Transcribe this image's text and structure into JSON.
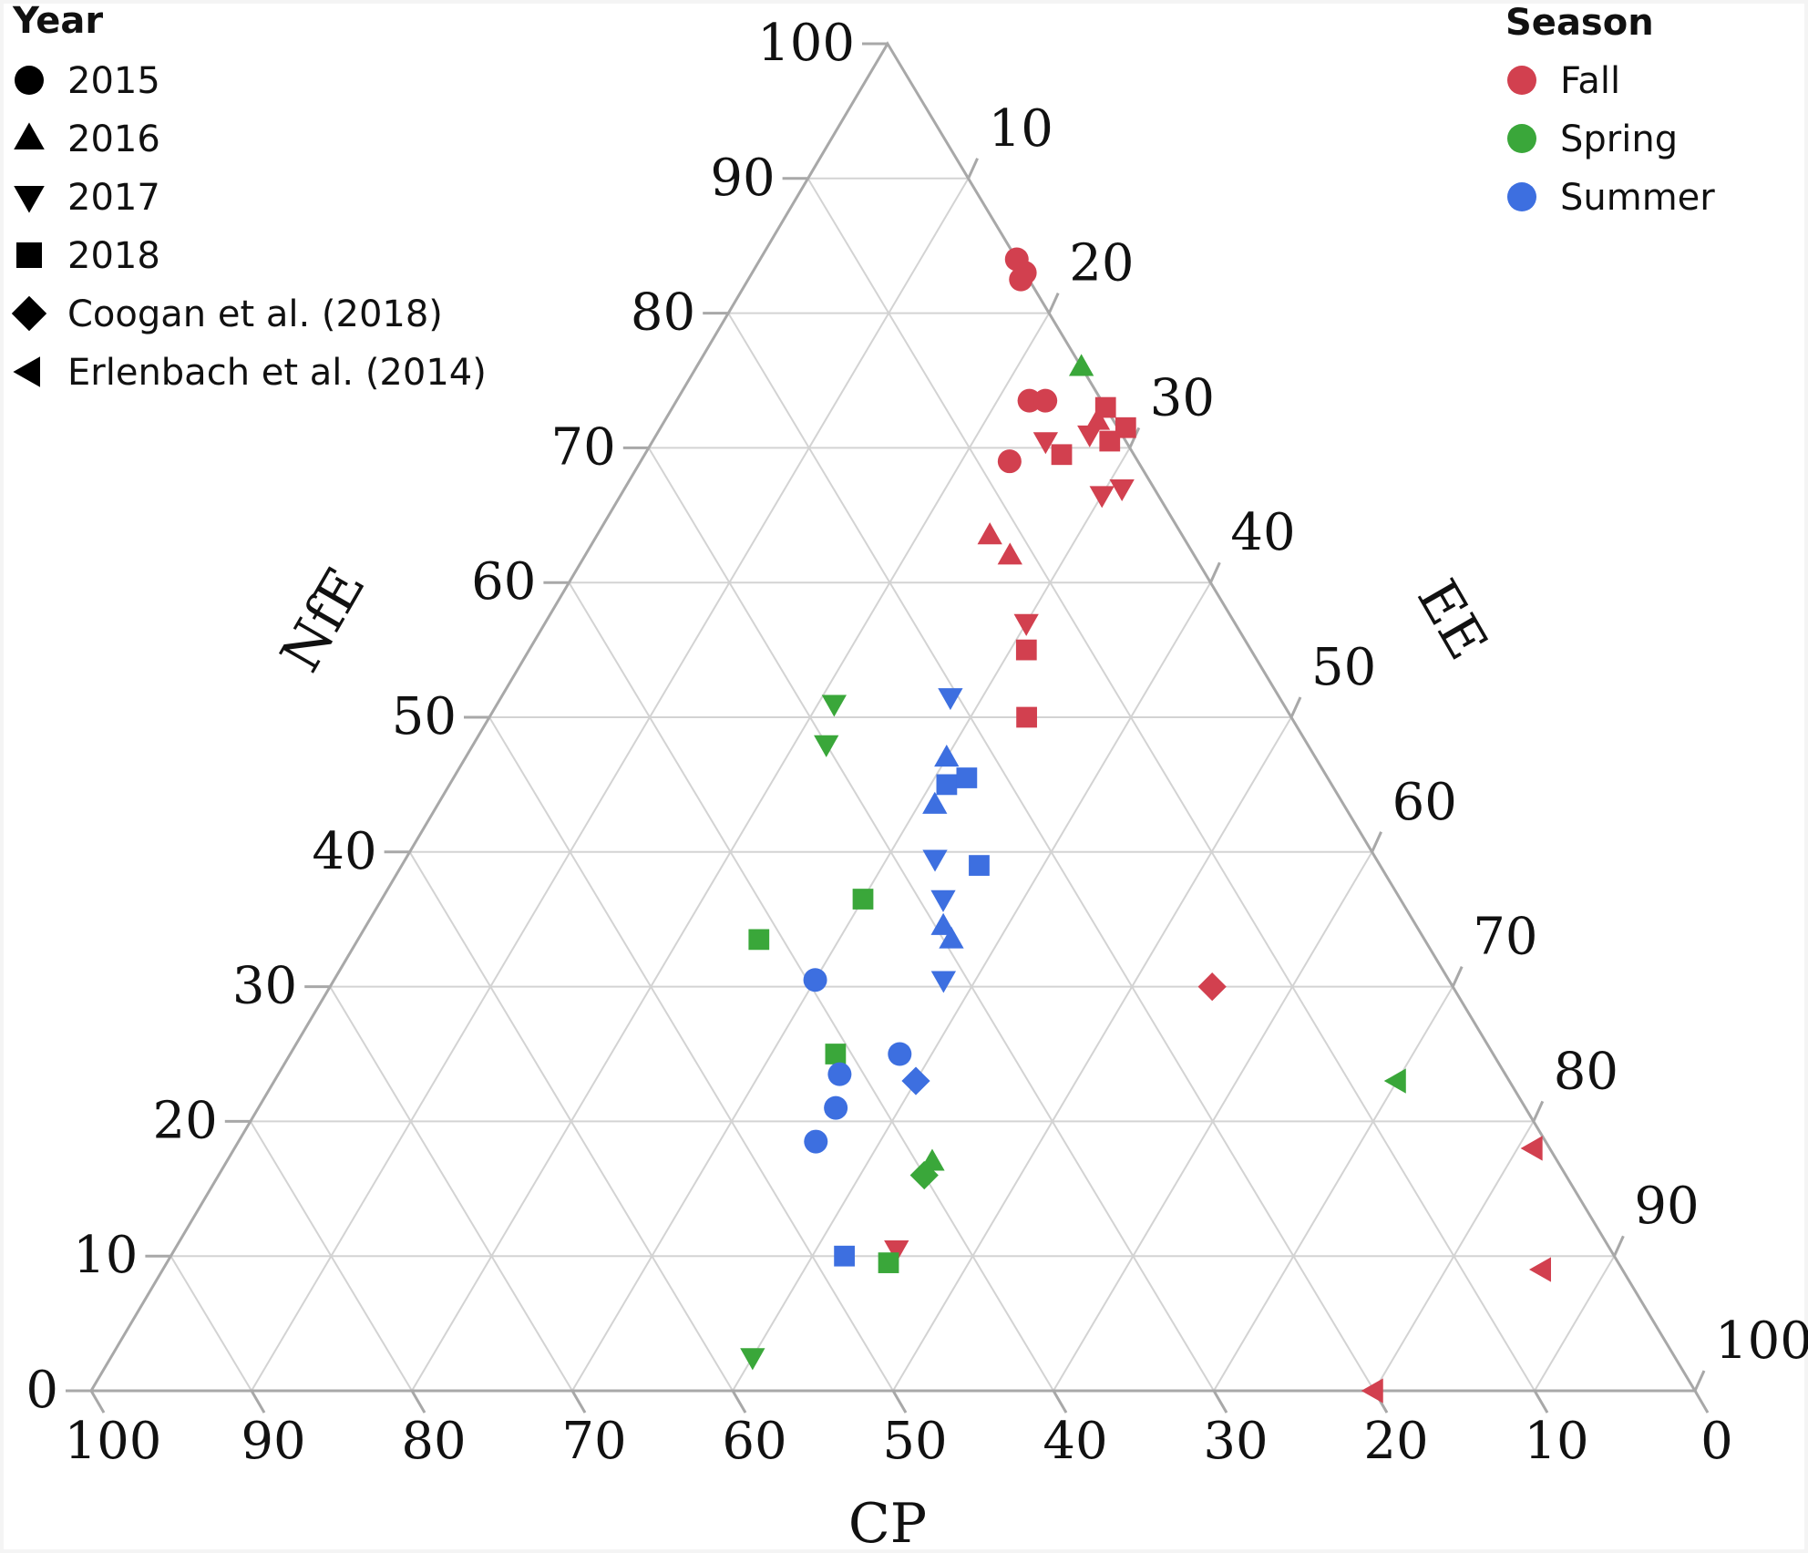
{
  "chart_data": {
    "type": "scatter",
    "subtype": "ternary",
    "title": "",
    "axes": {
      "left": {
        "label": "NfE",
        "ticks": [
          "0",
          "10",
          "20",
          "30",
          "40",
          "50",
          "60",
          "70",
          "80",
          "90",
          "100"
        ]
      },
      "right": {
        "label": "EE",
        "ticks": [
          "10",
          "20",
          "30",
          "40",
          "50",
          "60",
          "70",
          "80",
          "90",
          "100"
        ]
      },
      "bottom": {
        "label": "CP",
        "ticks": [
          "100",
          "90",
          "80",
          "70",
          "60",
          "50",
          "40",
          "30",
          "20",
          "10",
          "0"
        ]
      }
    },
    "grid": true,
    "colors": {
      "Fall": "#d2404f",
      "Spring": "#3aa73a",
      "Summer": "#3d6fe0"
    },
    "legends": {
      "year": {
        "title": "Year",
        "position": "top-left",
        "entries": [
          {
            "label": "2015",
            "marker": "circle"
          },
          {
            "label": "2016",
            "marker": "triangle-up"
          },
          {
            "label": "2017",
            "marker": "triangle-down"
          },
          {
            "label": "2018",
            "marker": "square"
          },
          {
            "label": "Coogan et al. (2018)",
            "marker": "diamond"
          },
          {
            "label": "Erlenbach et al. (2014)",
            "marker": "triangle-left"
          }
        ]
      },
      "season": {
        "title": "Season",
        "position": "top-right",
        "entries": [
          {
            "label": "Fall",
            "color": "#d2404f"
          },
          {
            "label": "Spring",
            "color": "#3aa73a"
          },
          {
            "label": "Summer",
            "color": "#3d6fe0"
          }
        ]
      }
    },
    "points": [
      {
        "season": "Fall",
        "marker": "circle",
        "NfE": 84,
        "EE": 16
      },
      {
        "season": "Fall",
        "marker": "circle",
        "NfE": 83,
        "EE": 17
      },
      {
        "season": "Fall",
        "marker": "circle",
        "NfE": 82.5,
        "EE": 17
      },
      {
        "season": "Fall",
        "marker": "circle",
        "NfE": 73.5,
        "EE": 22
      },
      {
        "season": "Fall",
        "marker": "circle",
        "NfE": 73.5,
        "EE": 23
      },
      {
        "season": "Fall",
        "marker": "circle",
        "NfE": 69,
        "EE": 23
      },
      {
        "season": "Fall",
        "marker": "triangle-up",
        "NfE": 72,
        "EE": 27
      },
      {
        "season": "Fall",
        "marker": "triangle-up",
        "NfE": 63.5,
        "EE": 24.5
      },
      {
        "season": "Fall",
        "marker": "triangle-up",
        "NfE": 62,
        "EE": 26.5
      },
      {
        "season": "Fall",
        "marker": "triangle-down",
        "NfE": 70.5,
        "EE": 24.5
      },
      {
        "season": "Fall",
        "marker": "triangle-down",
        "NfE": 71,
        "EE": 27
      },
      {
        "season": "Fall",
        "marker": "triangle-down",
        "NfE": 66.5,
        "EE": 30
      },
      {
        "season": "Fall",
        "marker": "triangle-down",
        "NfE": 67,
        "EE": 31
      },
      {
        "season": "Fall",
        "marker": "triangle-down",
        "NfE": 57,
        "EE": 30
      },
      {
        "season": "Fall",
        "marker": "triangle-down",
        "NfE": 10.5,
        "EE": 45
      },
      {
        "season": "Fall",
        "marker": "square",
        "NfE": 73,
        "EE": 27
      },
      {
        "season": "Fall",
        "marker": "square",
        "NfE": 71.5,
        "EE": 29
      },
      {
        "season": "Fall",
        "marker": "square",
        "NfE": 70.5,
        "EE": 28.5
      },
      {
        "season": "Fall",
        "marker": "square",
        "NfE": 69.5,
        "EE": 26
      },
      {
        "season": "Fall",
        "marker": "square",
        "NfE": 55,
        "EE": 31
      },
      {
        "season": "Fall",
        "marker": "square",
        "NfE": 50,
        "EE": 33.5
      },
      {
        "season": "Fall",
        "marker": "diamond",
        "NfE": 30,
        "EE": 55
      },
      {
        "season": "Fall",
        "marker": "triangle-left",
        "NfE": 18,
        "EE": 81
      },
      {
        "season": "Fall",
        "marker": "triangle-left",
        "NfE": 9,
        "EE": 86
      },
      {
        "season": "Fall",
        "marker": "triangle-left",
        "NfE": 0,
        "EE": 80
      },
      {
        "season": "Spring",
        "marker": "triangle-up",
        "NfE": 76,
        "EE": 24
      },
      {
        "season": "Spring",
        "marker": "triangle-up",
        "NfE": 17,
        "EE": 44
      },
      {
        "season": "Spring",
        "marker": "triangle-down",
        "NfE": 51,
        "EE": 21
      },
      {
        "season": "Spring",
        "marker": "triangle-down",
        "NfE": 48,
        "EE": 22
      },
      {
        "season": "Spring",
        "marker": "triangle-down",
        "NfE": 2.5,
        "EE": 40
      },
      {
        "season": "Spring",
        "marker": "square",
        "NfE": 36.5,
        "EE": 30
      },
      {
        "season": "Spring",
        "marker": "square",
        "NfE": 33.5,
        "EE": 25
      },
      {
        "season": "Spring",
        "marker": "square",
        "NfE": 25,
        "EE": 34
      },
      {
        "season": "Spring",
        "marker": "square",
        "NfE": 9.5,
        "EE": 45
      },
      {
        "season": "Spring",
        "marker": "diamond",
        "NfE": 16,
        "EE": 44
      },
      {
        "season": "Spring",
        "marker": "triangle-left",
        "NfE": 23,
        "EE": 70
      },
      {
        "season": "Summer",
        "marker": "circle",
        "NfE": 30.5,
        "EE": 30
      },
      {
        "season": "Summer",
        "marker": "circle",
        "NfE": 25,
        "EE": 38
      },
      {
        "season": "Summer",
        "marker": "circle",
        "NfE": 23.5,
        "EE": 35
      },
      {
        "season": "Summer",
        "marker": "circle",
        "NfE": 21,
        "EE": 36
      },
      {
        "season": "Summer",
        "marker": "circle",
        "NfE": 18.5,
        "EE": 36
      },
      {
        "season": "Summer",
        "marker": "triangle-up",
        "NfE": 47,
        "EE": 30
      },
      {
        "season": "Summer",
        "marker": "triangle-up",
        "NfE": 43.5,
        "EE": 31
      },
      {
        "season": "Summer",
        "marker": "triangle-up",
        "NfE": 34.5,
        "EE": 36
      },
      {
        "season": "Summer",
        "marker": "triangle-up",
        "NfE": 33.5,
        "EE": 37
      },
      {
        "season": "Summer",
        "marker": "triangle-down",
        "NfE": 51.5,
        "EE": 28
      },
      {
        "season": "Summer",
        "marker": "triangle-down",
        "NfE": 39.5,
        "EE": 33
      },
      {
        "season": "Summer",
        "marker": "triangle-down",
        "NfE": 36.5,
        "EE": 35
      },
      {
        "season": "Summer",
        "marker": "triangle-down",
        "NfE": 30.5,
        "EE": 38
      },
      {
        "season": "Summer",
        "marker": "square",
        "NfE": 45,
        "EE": 31
      },
      {
        "season": "Summer",
        "marker": "square",
        "NfE": 45.5,
        "EE": 32
      },
      {
        "season": "Summer",
        "marker": "square",
        "NfE": 39,
        "EE": 36
      },
      {
        "season": "Summer",
        "marker": "square",
        "NfE": 10,
        "EE": 42
      },
      {
        "season": "Summer",
        "marker": "diamond",
        "NfE": 23,
        "EE": 40
      }
    ]
  }
}
